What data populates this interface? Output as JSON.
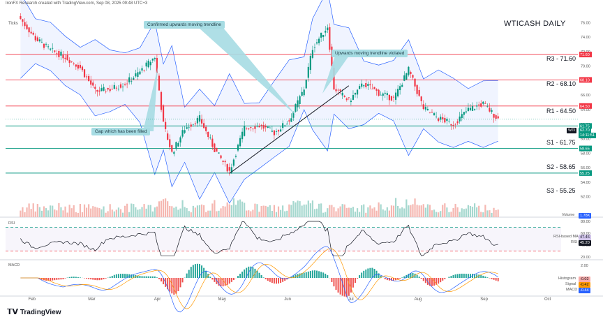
{
  "header": {
    "attribution": "IronFX Research created with TradingView.com, Sep 08, 2025 09:48 UTC+3",
    "ticks_label": "Ticks",
    "title": "WTICASH DAILY",
    "brand": "TradingView"
  },
  "levels": [
    {
      "label": "R3 - 71.60",
      "value": 71.6,
      "color": "#f23645",
      "tag": "71.60"
    },
    {
      "label": "R2 - 68.10",
      "value": 68.1,
      "color": "#f23645",
      "tag": "68.10"
    },
    {
      "label": "R1 - 64.50",
      "value": 64.5,
      "color": "#f23645",
      "tag": "64.50"
    },
    {
      "label": "S1 - 61.75",
      "value": 61.75,
      "color": "#089981",
      "tag": "61.75"
    },
    {
      "label": "S2 - 58.65",
      "value": 58.65,
      "color": "#089981",
      "tag": "58.65"
    },
    {
      "label": "S3 - 55.25",
      "value": 55.25,
      "color": "#089981",
      "tag": "55.25"
    }
  ],
  "annotations": {
    "confirmed": "Confirmed upwards moving trendline",
    "violated": "Upwards moving trendline violated",
    "gap": "Gap which has been filled"
  },
  "price_tags": {
    "symbol": "WTI",
    "last": "62.70",
    "countdown": "14:11:51"
  },
  "indicators": {
    "volume_label": "Volume",
    "volume_value": "1.78K",
    "rsi_label": "RSI",
    "rsi_ma_label": "RSI-based MA",
    "rsi_ma_value": "47.46",
    "rsi_label2": "RSI",
    "rsi_value": "45.20",
    "macd_label": "MACD",
    "hist_label": "Histogram",
    "hist_value": "-0.02",
    "signal_label": "Signal",
    "signal_value": "-0.42",
    "macd_label2": "MACD",
    "macd_value": "-0.44"
  },
  "colors": {
    "up": "#089981",
    "down": "#f23645",
    "band": "#2962ff",
    "rsi": "#131722",
    "macd": "#2962ff",
    "signal": "#ff9800",
    "callout": "#a6dce3"
  },
  "chart_data": {
    "type": "candlestick",
    "title": "WTICASH DAILY",
    "x_ticks": [
      "Feb",
      "Mar",
      "Apr",
      "May",
      "Jun",
      "Jul",
      "Aug",
      "Sep",
      "Oct"
    ],
    "y_ticks": [
      52,
      54,
      56,
      58,
      60,
      62,
      64,
      66,
      68,
      70,
      72,
      74,
      76
    ],
    "ylim": [
      51,
      77
    ],
    "rsi_ticks": [
      20,
      40,
      60,
      80
    ],
    "rsi_levels": [
      70,
      30
    ],
    "macd_ticks": [
      -2,
      0,
      2
    ],
    "close_path": [
      {
        "date": "2025-01-27",
        "close": 76.5
      },
      {
        "date": "2025-02-03",
        "close": 73.8
      },
      {
        "date": "2025-02-10",
        "close": 72.2
      },
      {
        "date": "2025-02-17",
        "close": 71.3
      },
      {
        "date": "2025-02-24",
        "close": 69.8
      },
      {
        "date": "2025-03-03",
        "close": 66.5
      },
      {
        "date": "2025-03-10",
        "close": 66.8
      },
      {
        "date": "2025-03-17",
        "close": 67.6
      },
      {
        "date": "2025-03-24",
        "close": 69.2
      },
      {
        "date": "2025-03-31",
        "close": 71.3
      },
      {
        "date": "2025-04-04",
        "close": 62.0
      },
      {
        "date": "2025-04-08",
        "close": 58.0
      },
      {
        "date": "2025-04-14",
        "close": 61.4
      },
      {
        "date": "2025-04-21",
        "close": 62.8
      },
      {
        "date": "2025-04-28",
        "close": 58.5
      },
      {
        "date": "2025-05-05",
        "close": 55.5
      },
      {
        "date": "2025-05-12",
        "close": 61.5
      },
      {
        "date": "2025-05-19",
        "close": 61.8
      },
      {
        "date": "2025-05-26",
        "close": 60.8
      },
      {
        "date": "2025-06-02",
        "close": 62.5
      },
      {
        "date": "2025-06-09",
        "close": 66.9
      },
      {
        "date": "2025-06-13",
        "close": 72.5
      },
      {
        "date": "2025-06-20",
        "close": 75.5
      },
      {
        "date": "2025-06-23",
        "close": 67.0
      },
      {
        "date": "2025-06-30",
        "close": 65.2
      },
      {
        "date": "2025-07-07",
        "close": 67.6
      },
      {
        "date": "2025-07-14",
        "close": 66.3
      },
      {
        "date": "2025-07-21",
        "close": 65.5
      },
      {
        "date": "2025-07-28",
        "close": 69.5
      },
      {
        "date": "2025-08-04",
        "close": 64.2
      },
      {
        "date": "2025-08-11",
        "close": 62.8
      },
      {
        "date": "2025-08-18",
        "close": 62.0
      },
      {
        "date": "2025-08-25",
        "close": 64.0
      },
      {
        "date": "2025-09-01",
        "close": 64.8
      },
      {
        "date": "2025-09-08",
        "close": 62.7
      }
    ]
  }
}
